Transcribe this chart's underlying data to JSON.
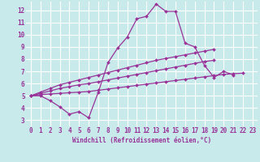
{
  "background_color": "#c8eaea",
  "grid_color": "#ffffff",
  "line_color": "#993399",
  "marker": "D",
  "marker_size": 2.0,
  "linewidth": 0.9,
  "xlabel": "Windchill (Refroidissement éolien,°C)",
  "xlabel_fontsize": 5.5,
  "tick_fontsize": 5.5,
  "xlim": [
    -0.5,
    23.5
  ],
  "ylim": [
    2.5,
    12.7
  ],
  "xticks": [
    0,
    1,
    2,
    3,
    4,
    5,
    6,
    7,
    8,
    9,
    10,
    11,
    12,
    13,
    14,
    15,
    16,
    17,
    18,
    19,
    20,
    21,
    22,
    23
  ],
  "yticks": [
    3,
    4,
    5,
    6,
    7,
    8,
    9,
    10,
    11,
    12
  ],
  "series": [
    [
      5.0,
      5.0,
      4.6,
      4.1,
      3.5,
      3.7,
      3.2,
      5.3,
      7.7,
      8.9,
      9.8,
      11.3,
      11.5,
      12.5,
      11.9,
      11.9,
      9.3,
      9.0,
      7.5,
      6.5,
      7.0,
      6.7,
      null,
      null
    ],
    [
      5.0,
      5.1,
      5.15,
      5.2,
      5.25,
      5.3,
      5.35,
      5.45,
      5.55,
      5.65,
      5.75,
      5.85,
      5.95,
      6.05,
      6.15,
      6.25,
      6.35,
      6.45,
      6.55,
      6.65,
      6.75,
      6.8,
      6.85,
      null
    ],
    [
      5.0,
      5.2,
      5.4,
      5.6,
      5.75,
      5.9,
      6.0,
      6.15,
      6.3,
      6.45,
      6.6,
      6.75,
      6.9,
      7.05,
      7.2,
      7.35,
      7.5,
      7.65,
      7.8,
      7.9,
      null,
      null,
      null,
      null
    ],
    [
      5.0,
      5.3,
      5.6,
      5.9,
      6.1,
      6.3,
      6.5,
      6.7,
      6.9,
      7.1,
      7.3,
      7.5,
      7.7,
      7.9,
      8.05,
      8.2,
      8.35,
      8.5,
      8.65,
      8.8,
      null,
      null,
      null,
      null
    ]
  ]
}
